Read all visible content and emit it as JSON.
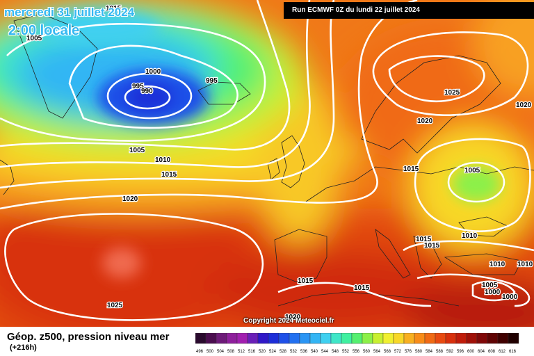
{
  "header": {
    "date": "mercredi 31 juillet 2024",
    "time": "2:00 locale",
    "run": "Run ECMWF 0Z du lundi 22 juillet 2024"
  },
  "footer": {
    "title": "Géop. z500, pression niveau mer",
    "offset": "(+216h)",
    "copyright": "Copyright 2024 Meteociel.fr"
  },
  "legend": {
    "values": [
      "496",
      "500",
      "504",
      "508",
      "512",
      "516",
      "520",
      "524",
      "528",
      "532",
      "536",
      "540",
      "544",
      "548",
      "552",
      "556",
      "560",
      "564",
      "568",
      "572",
      "576",
      "580",
      "584",
      "588",
      "592",
      "596",
      "600",
      "604",
      "608",
      "612",
      "616"
    ],
    "colors": [
      "#2a0a2e",
      "#4b0d4f",
      "#6d1a78",
      "#8e1f9c",
      "#a11fb0",
      "#6a1fb8",
      "#3018c8",
      "#1d2ed8",
      "#1f50e8",
      "#2270f0",
      "#2a95f4",
      "#33b5f4",
      "#3fd0f0",
      "#3fe6c8",
      "#3ff0a0",
      "#55f070",
      "#8cf048",
      "#c8f030",
      "#f0f030",
      "#f8d828",
      "#f8b020",
      "#f88c18",
      "#f06a14",
      "#e84a10",
      "#d8300c",
      "#c01c0a",
      "#a01008",
      "#800808",
      "#600404",
      "#400000",
      "#200000"
    ]
  },
  "isobar_labels": [
    "1015",
    "1005",
    "995",
    "990",
    "1000",
    "995",
    "1005",
    "1010",
    "1015",
    "1020",
    "1025",
    "1025",
    "1020",
    "1020",
    "1015",
    "1005",
    "1015",
    "1015",
    "1010",
    "1010",
    "1010",
    "1015",
    "1015",
    "1005",
    "1000",
    "1000",
    "1020"
  ]
}
